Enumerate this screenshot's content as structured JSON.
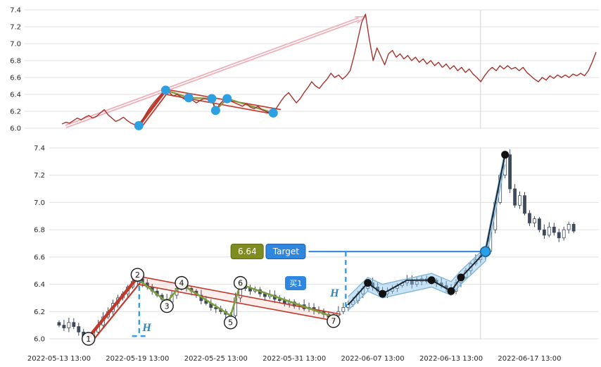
{
  "page": {
    "background": "#ffffff",
    "accent_blue": "#2e86de",
    "accent_red": "#c0392b",
    "accent_green": "#7d9c3b",
    "price_line_color": "#a5342d"
  },
  "chart_data": [
    {
      "type": "line",
      "name": "overview-price-line-chart",
      "title": "",
      "ylim": [
        6.0,
        7.4
      ],
      "grid": true,
      "y_ticks": [
        7.4,
        7.2,
        7.0,
        6.8,
        6.6,
        6.4,
        6.2,
        6.0
      ],
      "series": [
        {
          "name": "close",
          "color": "#a5342d",
          "values": [
            6.05,
            6.07,
            6.06,
            6.09,
            6.12,
            6.1,
            6.13,
            6.15,
            6.12,
            6.14,
            6.18,
            6.22,
            6.16,
            6.12,
            6.08,
            6.1,
            6.13,
            6.09,
            6.06,
            6.04,
            6.03,
            6.1,
            6.18,
            6.25,
            6.31,
            6.36,
            6.41,
            6.45,
            6.42,
            6.38,
            6.4,
            6.37,
            6.34,
            6.36,
            6.33,
            6.3,
            6.33,
            6.35,
            6.34,
            6.35,
            6.21,
            6.28,
            6.33,
            6.35,
            6.32,
            6.3,
            6.28,
            6.26,
            6.29,
            6.25,
            6.23,
            6.26,
            6.22,
            6.2,
            6.18,
            6.18,
            6.25,
            6.32,
            6.38,
            6.42,
            6.36,
            6.3,
            6.35,
            6.42,
            6.48,
            6.55,
            6.5,
            6.47,
            6.53,
            6.58,
            6.65,
            6.6,
            6.63,
            6.58,
            6.62,
            6.68,
            6.85,
            7.05,
            7.25,
            7.35,
            7.05,
            6.8,
            6.95,
            6.85,
            6.75,
            6.88,
            6.92,
            6.84,
            6.88,
            6.82,
            6.86,
            6.8,
            6.84,
            6.78,
            6.82,
            6.76,
            6.8,
            6.74,
            6.78,
            6.72,
            6.76,
            6.7,
            6.74,
            6.68,
            6.72,
            6.66,
            6.7,
            6.64,
            6.6,
            6.55,
            6.62,
            6.68,
            6.72,
            6.68,
            6.74,
            6.7,
            6.74,
            6.7,
            6.72,
            6.68,
            6.72,
            6.66,
            6.62,
            6.58,
            6.55,
            6.6,
            6.57,
            6.62,
            6.59,
            6.63,
            6.6,
            6.63,
            6.6,
            6.64,
            6.62,
            6.65,
            6.62,
            6.68,
            6.78,
            6.9
          ]
        }
      ],
      "annotations": {
        "trend_arrow": {
          "from": [
            1,
            6.02
          ],
          "to": [
            79,
            7.32
          ],
          "color": "#efb0ba"
        },
        "impulse": {
          "color": "#c0392b",
          "lines": [
            [
              [
                20,
                6.03
              ],
              [
                27,
                6.45
              ]
            ],
            [
              [
                20.5,
                6.0
              ],
              [
                27.5,
                6.42
              ]
            ]
          ]
        },
        "zigzag": {
          "color": "#7d9c3b",
          "points": [
            [
              27,
              6.45
            ],
            [
              33,
              6.36
            ],
            [
              39,
              6.35
            ],
            [
              40,
              6.21
            ],
            [
              43,
              6.35
            ],
            [
              55,
              6.18
            ]
          ]
        },
        "wedge": {
          "color": "#c0392b",
          "fill": "rgba(231,76,60,0.10)",
          "upper": [
            [
              27,
              6.46
            ],
            [
              57,
              6.22
            ]
          ],
          "lower": [
            [
              27,
              6.4
            ],
            [
              56,
              6.16
            ]
          ]
        },
        "pivot_dots": {
          "color": "#2e9fe0",
          "points": [
            [
              20,
              6.03
            ],
            [
              27,
              6.45
            ],
            [
              33,
              6.36
            ],
            [
              39,
              6.35
            ],
            [
              40,
              6.21
            ],
            [
              43,
              6.35
            ],
            [
              55,
              6.18
            ]
          ]
        }
      }
    },
    {
      "type": "candlestick",
      "name": "detail-candlestick-chart",
      "title": "",
      "ylim": [
        6.0,
        7.4
      ],
      "grid": true,
      "y_ticks": [
        7.4,
        7.2,
        7.0,
        6.8,
        6.6,
        6.4,
        6.2,
        6.0
      ],
      "x_ticks": [
        {
          "pos": 0,
          "label": "2022-05-13 13:00"
        },
        {
          "pos": 16,
          "label": "2022-05-19 13:00"
        },
        {
          "pos": 32,
          "label": "2022-05-25 13:00"
        },
        {
          "pos": 48,
          "label": "2022-05-31 13:00"
        },
        {
          "pos": 64,
          "label": "2022-06-07 13:00"
        },
        {
          "pos": 80,
          "label": "2022-06-13 13:00"
        },
        {
          "pos": 96,
          "label": "2022-06-17 13:00"
        }
      ],
      "candles": {
        "color_up": "#ffffff",
        "color_down": "#3f4b5c",
        "outline": "#3f4b5c",
        "closes": [
          6.1,
          6.08,
          6.12,
          6.09,
          6.05,
          6.02,
          6.0,
          6.05,
          6.1,
          6.16,
          6.2,
          6.26,
          6.3,
          6.33,
          6.38,
          6.42,
          6.44,
          6.41,
          6.38,
          6.35,
          6.32,
          6.29,
          6.27,
          6.32,
          6.37,
          6.4,
          6.37,
          6.35,
          6.32,
          6.28,
          6.26,
          6.23,
          6.22,
          6.2,
          6.18,
          6.17,
          6.3,
          6.4,
          6.37,
          6.35,
          6.36,
          6.33,
          6.31,
          6.32,
          6.29,
          6.28,
          6.26,
          6.27,
          6.24,
          6.25,
          6.22,
          6.23,
          6.21,
          6.2,
          6.18,
          6.16,
          6.17,
          6.2,
          6.23,
          6.25,
          6.28,
          6.33,
          6.37,
          6.41,
          6.38,
          6.35,
          6.33,
          6.35,
          6.37,
          6.39,
          6.41,
          6.43,
          6.4,
          6.42,
          6.44,
          6.42,
          6.43,
          6.41,
          6.39,
          6.37,
          6.35,
          6.41,
          6.45,
          6.5,
          6.55,
          6.58,
          6.61,
          6.64,
          6.8,
          7.0,
          7.2,
          7.35,
          7.1,
          6.98,
          7.05,
          6.92,
          6.85,
          6.88,
          6.8,
          6.76,
          6.82,
          6.78,
          6.74,
          6.8,
          6.84,
          6.79
        ]
      },
      "annotations": {
        "pivot_circles": [
          {
            "n": "1",
            "at": [
              6,
              6.0
            ]
          },
          {
            "n": "2",
            "at": [
              16,
              6.47
            ]
          },
          {
            "n": "3",
            "at": [
              22,
              6.24
            ]
          },
          {
            "n": "4",
            "at": [
              25,
              6.41
            ]
          },
          {
            "n": "5",
            "at": [
              35,
              6.12
            ]
          },
          {
            "n": "6",
            "at": [
              37,
              6.41
            ]
          },
          {
            "n": "7",
            "at": [
              56,
              6.13
            ]
          }
        ],
        "impulse": {
          "color": "#c0392b",
          "lines": [
            [
              [
                6,
                6.01
              ],
              [
                16,
                6.45
              ]
            ],
            [
              [
                6.5,
                5.97
              ],
              [
                16.5,
                6.41
              ]
            ]
          ]
        },
        "zigzag": {
          "color": "#7d9c3b",
          "points": [
            [
              16,
              6.44
            ],
            [
              22,
              6.27
            ],
            [
              25,
              6.4
            ],
            [
              35,
              6.17
            ],
            [
              37,
              6.4
            ],
            [
              56,
              6.16
            ]
          ]
        },
        "wedge": {
          "color": "#c0392b",
          "fill": "rgba(231,76,60,0.10)",
          "upper": [
            [
              16,
              6.46
            ],
            [
              57.5,
              6.18
            ]
          ],
          "lower": [
            [
              16,
              6.4
            ],
            [
              56.5,
              6.13
            ]
          ]
        },
        "channel": {
          "fill": "rgba(133,193,233,0.45)",
          "edge": "#7fb3d5",
          "half_width": 0.05,
          "path": [
            [
              59,
              6.26
            ],
            [
              63,
              6.4
            ],
            [
              66,
              6.35
            ],
            [
              76,
              6.43
            ],
            [
              80,
              6.37
            ],
            [
              82,
              6.45
            ],
            [
              87,
              6.62
            ],
            [
              91,
              7.33
            ]
          ]
        },
        "wave_line": {
          "color": "#1b2631",
          "points": [
            [
              59,
              6.25
            ],
            [
              63,
              6.41
            ],
            [
              66,
              6.33
            ],
            [
              71,
              6.43
            ],
            [
              76,
              6.43
            ],
            [
              80,
              6.35
            ],
            [
              82,
              6.45
            ],
            [
              87,
              6.64
            ],
            [
              91,
              7.35
            ]
          ]
        },
        "wave_dots": {
          "color": "#111111",
          "points": [
            [
              63,
              6.41
            ],
            [
              66,
              6.33
            ],
            [
              76,
              6.43
            ],
            [
              80,
              6.35
            ],
            [
              82,
              6.45
            ],
            [
              91,
              7.35
            ]
          ]
        },
        "entry_dot": {
          "at": [
            87,
            6.64
          ],
          "color": "#2b9ee8"
        },
        "target": {
          "price_label": "6.64",
          "label": "Target",
          "price": 6.64,
          "price_box_center": 38.4,
          "label_box_center": 46.3,
          "line_from": 50.9,
          "line_to": 87,
          "box_color": "#7f8c1f",
          "label_color": "#2e86de"
        },
        "buy_signal": {
          "label": "买1",
          "at": [
            48.3,
            6.41
          ],
          "color": "#2e86de"
        },
        "h_measures": [
          {
            "label": "H",
            "v_line": [
              [
                16.35,
                6.45
              ],
              [
                16.35,
                6.02
              ]
            ],
            "h_line": [
              [
                14.9,
                6.02
              ],
              [
                18.1,
                6.02
              ]
            ],
            "label_at": [
              17.9,
              6.08
            ]
          },
          {
            "label": "H",
            "v_line": [
              [
                58.5,
                6.64
              ],
              [
                58.5,
                6.22
              ]
            ],
            "label_at": [
              56.2,
              6.33
            ]
          }
        ],
        "crosshair_x": 86
      }
    }
  ]
}
